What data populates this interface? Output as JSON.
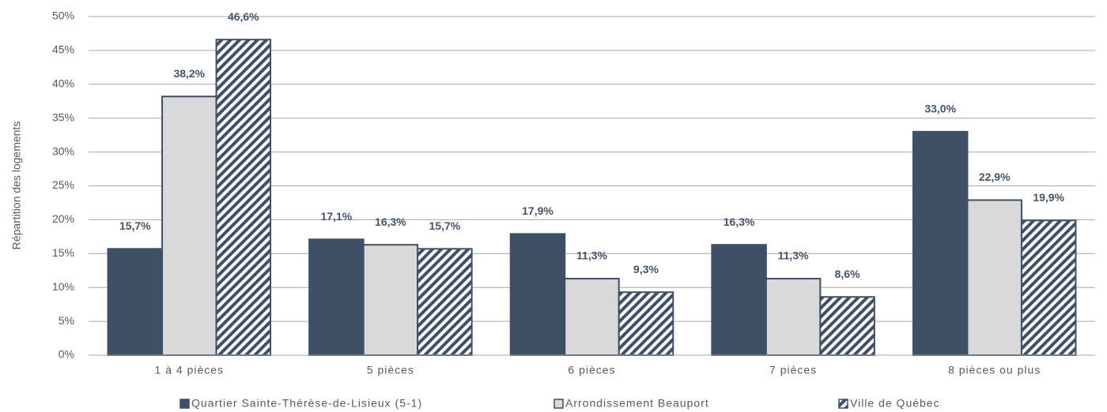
{
  "chart_data": {
    "type": "bar",
    "y_label": "Répartition des logements",
    "categories": [
      "1 à 4 pièces",
      "5 pièces",
      "6 pièces",
      "7 pièces",
      "8 pièces ou plus"
    ],
    "series": [
      {
        "name": "Quartier Sainte-Thérèse-de-Lisieux (5-1)",
        "color": "#3f4f66",
        "values": [
          15.7,
          17.1,
          17.9,
          16.3,
          33.0
        ],
        "value_labels": [
          "15,7%",
          "17,1%",
          "17,9%",
          "16,3%",
          "33,0%"
        ]
      },
      {
        "name": "Arrondissement Beauport",
        "color": "#d9d9d9",
        "values": [
          38.2,
          16.3,
          11.3,
          11.3,
          22.9
        ],
        "value_labels": [
          "38,2%",
          "16,3%",
          "11,3%",
          "11,3%",
          "22,9%"
        ]
      },
      {
        "name": "Ville de Québec",
        "color": "hatch",
        "values": [
          46.6,
          15.7,
          9.3,
          8.6,
          19.9
        ],
        "value_labels": [
          "46,6%",
          "15,7%",
          "9,3%",
          "8,6%",
          "19,9%"
        ]
      }
    ],
    "ylim": [
      0,
      50
    ],
    "yticks": [
      {
        "value": 0,
        "label": "0%"
      },
      {
        "value": 5,
        "label": "5%"
      },
      {
        "value": 10,
        "label": "10%"
      },
      {
        "value": 15,
        "label": "15%"
      },
      {
        "value": 20,
        "label": "20%"
      },
      {
        "value": 25,
        "label": "25%"
      },
      {
        "value": 30,
        "label": "30%"
      },
      {
        "value": 35,
        "label": "35%"
      },
      {
        "value": 40,
        "label": "40%"
      },
      {
        "value": 45,
        "label": "45%"
      },
      {
        "value": 50,
        "label": "50%"
      }
    ],
    "grid": true,
    "legend": "bottom"
  }
}
